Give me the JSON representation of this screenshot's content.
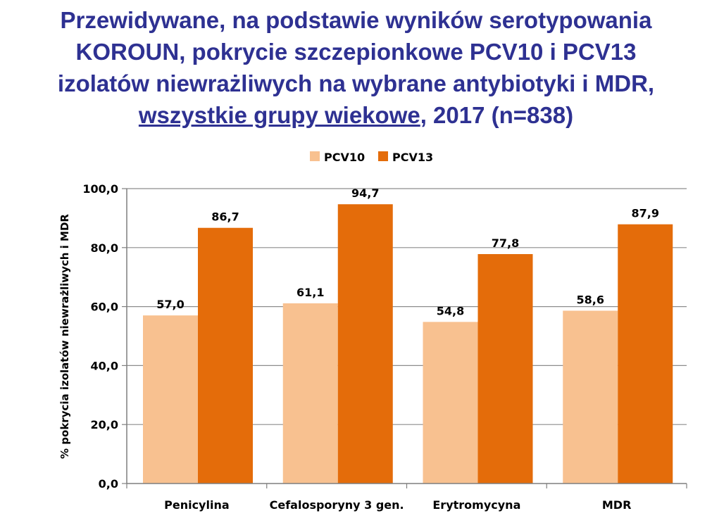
{
  "title": {
    "line1": "Przewidywane, na podstawie wyników serotypowania",
    "line2": "KOROUN, pokrycie szczepionkowe PCV10 i PCV13",
    "line3": "izolatów niewrażliwych na wybrane antybiotyki i MDR,",
    "line4_underlined": "wszystkie grupy wiekowe",
    "line4_rest": ", 2017 (n=838)"
  },
  "chart_data": {
    "type": "bar",
    "categories": [
      "Penicylina",
      "Cefalosporyny 3 gen.",
      "Erytromycyna",
      "MDR"
    ],
    "series": [
      {
        "name": "PCV10",
        "values": [
          57.0,
          61.1,
          54.8,
          58.6
        ],
        "color": "#f8c190"
      },
      {
        "name": "PCV13",
        "values": [
          86.7,
          94.7,
          77.8,
          87.9
        ],
        "color": "#e46c0a"
      }
    ],
    "ylabel": "% pokrycia izolatów niewrażliwych  i MDR",
    "ylim": [
      0,
      100
    ],
    "yticks": [
      "0,0",
      "20,0",
      "40,0",
      "60,0",
      "80,0",
      "100,0"
    ],
    "data_labels": [
      [
        "57,0",
        "61,1",
        "54,8",
        "58,6"
      ],
      [
        "86,7",
        "94,7",
        "77,8",
        "87,9"
      ]
    ],
    "grid": true,
    "legend_position": "top-center"
  }
}
